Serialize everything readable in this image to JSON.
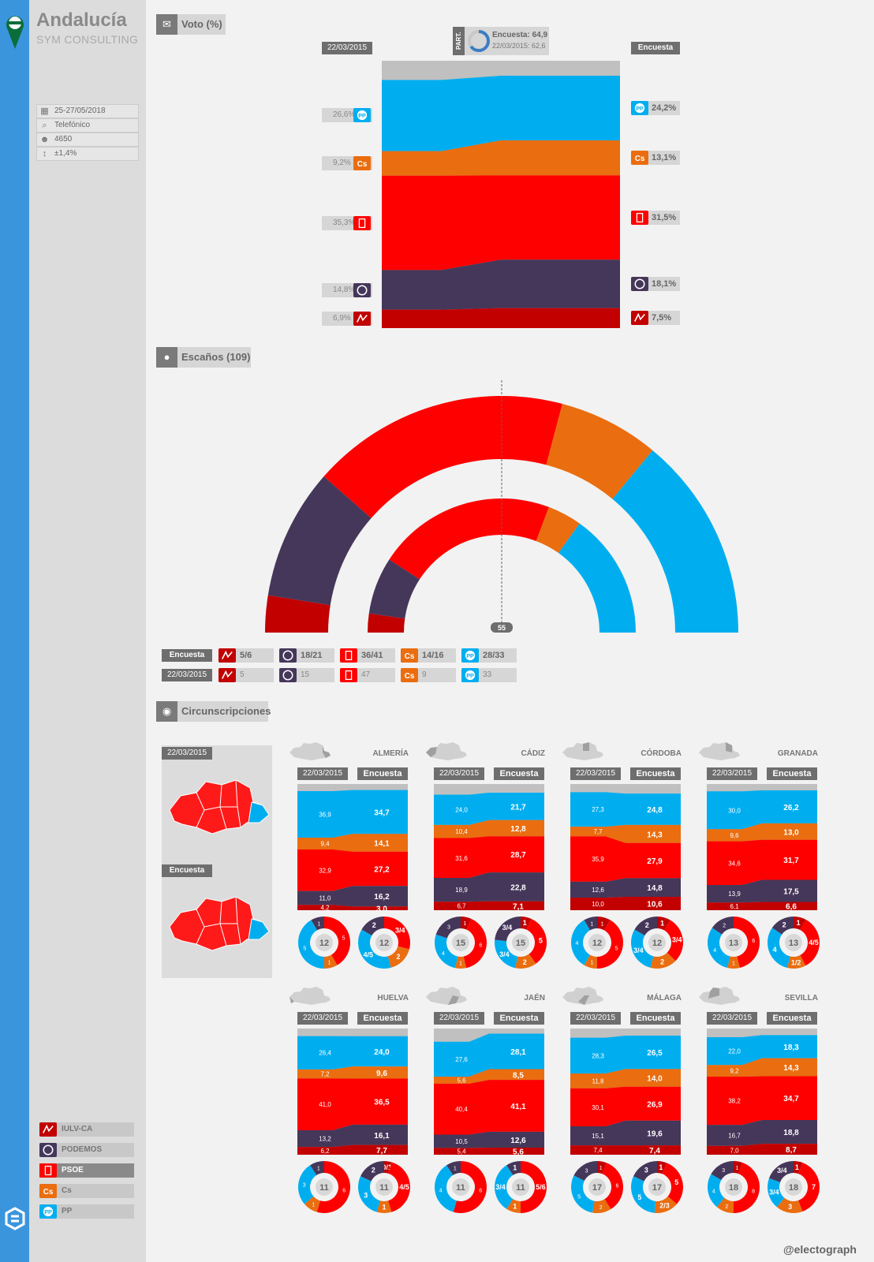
{
  "colors": {
    "IULV-CA": "#c20000",
    "PODEMOS": "#45375a",
    "PSOE": "#ff0000",
    "Cs": "#ea6d0f",
    "PP": "#00aef0",
    "part": "#c0c0c0"
  },
  "header": {
    "title": "Andalucía",
    "pollster": "SYM CONSULTING"
  },
  "meta": [
    {
      "icon": "calendar-icon",
      "value": "25-27/05/2018"
    },
    {
      "icon": "search-icon",
      "value": "Telefónico"
    },
    {
      "icon": "people-icon",
      "value": "4650"
    },
    {
      "icon": "error-margin-icon",
      "value": "±1,4%"
    }
  ],
  "sections": {
    "vote": "Voto (%)",
    "seats": "Escaños (109)",
    "districts": "Circunscripciones"
  },
  "labels": {
    "prev": "22/03/2015",
    "curr": "Encuesta",
    "part_tag": "PART.",
    "part_curr": "Encuesta: 64,9",
    "part_prev": "22/03/2015: 62,6",
    "majority": "55",
    "credit": "@electograph"
  },
  "chart_data": [
    {
      "type": "area",
      "title": "Voto (%)",
      "x": [
        "22/03/2015",
        "Encuesta"
      ],
      "series": [
        {
          "name": "PP",
          "values": [
            26.6,
            24.2
          ],
          "labels": [
            "26,6%",
            "24,2%"
          ]
        },
        {
          "name": "Cs",
          "values": [
            9.2,
            13.1
          ],
          "labels": [
            "9,2%",
            "13,1%"
          ]
        },
        {
          "name": "PSOE",
          "values": [
            35.3,
            31.5
          ],
          "labels": [
            "35,3%",
            "31,5%"
          ]
        },
        {
          "name": "PODEMOS",
          "values": [
            14.8,
            18.1
          ],
          "labels": [
            "14,8%",
            "18,1%"
          ]
        },
        {
          "name": "IULV-CA",
          "values": [
            6.9,
            7.5
          ],
          "labels": [
            "6,9%",
            "7,5%"
          ]
        }
      ],
      "participation": [
        62.6,
        64.9
      ]
    },
    {
      "type": "pie",
      "title": "Escaños (109)",
      "majority": 55,
      "series": [
        {
          "name": "IULV-CA",
          "curr": "5/6",
          "prev": "5",
          "curr_mid": 5.5,
          "prev_val": 5
        },
        {
          "name": "PODEMOS",
          "curr": "18/21",
          "prev": "15",
          "curr_mid": 19.5,
          "prev_val": 15
        },
        {
          "name": "PSOE",
          "curr": "36/41",
          "prev": "47",
          "curr_mid": 38.5,
          "prev_val": 47
        },
        {
          "name": "Cs",
          "curr": "14/16",
          "prev": "9",
          "curr_mid": 15,
          "prev_val": 9
        },
        {
          "name": "PP",
          "curr": "28/33",
          "prev": "33",
          "curr_mid": 30.5,
          "prev_val": 33
        }
      ]
    }
  ],
  "maps": {
    "prev": "22/03/2015",
    "curr": "Encuesta"
  },
  "districts": [
    {
      "name": "ALMERÍA",
      "seats": "12",
      "prev": [
        [
          "36,9",
          "34,7"
        ],
        [
          "9,4",
          "14,1"
        ],
        [
          "32,9",
          "27,2"
        ],
        [
          "11,0",
          "16,2"
        ],
        [
          "4,2",
          "3,0"
        ]
      ],
      "pv": [
        36.9,
        9.4,
        32.9,
        11.0,
        4.2
      ],
      "cv": [
        34.7,
        14.1,
        27.2,
        16.2,
        3.0
      ],
      "ps": [
        "5",
        "1",
        "5",
        "1",
        "0"
      ],
      "psv": [
        5,
        1,
        5,
        1,
        0
      ],
      "cs": [
        "4/5",
        "2",
        "3/4",
        "2",
        "0"
      ],
      "csv": [
        4.5,
        2,
        3.5,
        2,
        0
      ]
    },
    {
      "name": "CÁDIZ",
      "seats": "15",
      "prev": [
        [
          "24,0",
          "21,7"
        ],
        [
          "10,4",
          "12,8"
        ],
        [
          "31,6",
          "28,7"
        ],
        [
          "18,9",
          "22,8"
        ],
        [
          "6,7",
          "7,1"
        ]
      ],
      "pv": [
        24.0,
        10.4,
        31.6,
        18.9,
        6.7
      ],
      "cv": [
        21.7,
        12.8,
        28.7,
        22.8,
        7.1
      ],
      "ps": [
        "4",
        "1",
        "6",
        "3",
        "1"
      ],
      "psv": [
        4,
        1,
        6,
        3,
        1
      ],
      "cs": [
        "3/4",
        "2",
        "5",
        "3/4",
        "1"
      ],
      "csv": [
        3.5,
        2,
        5,
        3.5,
        1
      ]
    },
    {
      "name": "CÓRDOBA",
      "seats": "12",
      "prev": [
        [
          "27,3",
          "24,8"
        ],
        [
          "7,7",
          "14,3"
        ],
        [
          "35,9",
          "27,9"
        ],
        [
          "12,6",
          "14,8"
        ],
        [
          "10,0",
          "10,6"
        ]
      ],
      "pv": [
        27.3,
        7.7,
        35.9,
        12.6,
        10.0
      ],
      "cv": [
        24.8,
        14.3,
        27.9,
        14.8,
        10.6
      ],
      "ps": [
        "4",
        "1",
        "5",
        "1",
        "1"
      ],
      "psv": [
        4,
        1,
        5,
        1,
        1
      ],
      "cs": [
        "3/4",
        "2",
        "3/4",
        "2",
        "1"
      ],
      "csv": [
        3.5,
        2,
        3.5,
        2,
        1
      ]
    },
    {
      "name": "GRANADA",
      "seats": "13",
      "prev": [
        [
          "30,0",
          "26,2"
        ],
        [
          "9,6",
          "13,0"
        ],
        [
          "34,6",
          "31,7"
        ],
        [
          "13,9",
          "17,5"
        ],
        [
          "6,1",
          "6,6"
        ]
      ],
      "pv": [
        30.0,
        9.6,
        34.6,
        13.9,
        6.1
      ],
      "cv": [
        26.2,
        13.0,
        31.7,
        17.5,
        6.6
      ],
      "ps": [
        "4",
        "1",
        "6",
        "2",
        "0"
      ],
      "psv": [
        4,
        1,
        6,
        2,
        0
      ],
      "cs": [
        "4",
        "1/2",
        "4/5",
        "2",
        "1"
      ],
      "csv": [
        4,
        1.5,
        4.5,
        2,
        1
      ]
    },
    {
      "name": "HUELVA",
      "seats": "11",
      "prev": [
        [
          "26,4",
          "24,0"
        ],
        [
          "7,2",
          "9,6"
        ],
        [
          "41,0",
          "36,5"
        ],
        [
          "13,2",
          "16,1"
        ],
        [
          "6,2",
          "7,7"
        ]
      ],
      "pv": [
        26.4,
        7.2,
        41.0,
        13.2,
        6.2
      ],
      "cv": [
        24.0,
        9.6,
        36.5,
        16.1,
        7.7
      ],
      "ps": [
        "3",
        "1",
        "6",
        "1",
        "0"
      ],
      "psv": [
        3,
        1,
        6,
        1,
        0
      ],
      "cs": [
        "3",
        "1",
        "4/5",
        "2",
        "0/1"
      ],
      "csv": [
        3,
        1,
        4.5,
        2,
        0.5
      ]
    },
    {
      "name": "JAÉN",
      "seats": "11",
      "prev": [
        [
          "27,6",
          "28,1"
        ],
        [
          "5,6",
          "8,5"
        ],
        [
          "40,4",
          "41,1"
        ],
        [
          "10,5",
          "12,6"
        ],
        [
          "5,4",
          "5,6"
        ]
      ],
      "pv": [
        27.6,
        5.6,
        40.4,
        10.5,
        5.4
      ],
      "cv": [
        28.1,
        8.5,
        41.1,
        12.6,
        5.6
      ],
      "ps": [
        "4",
        "0",
        "6",
        "1",
        "0"
      ],
      "psv": [
        4,
        0,
        6,
        1,
        0
      ],
      "cs": [
        "3/4",
        "1",
        "5/6",
        "1",
        "0"
      ],
      "csv": [
        3.5,
        1,
        5.5,
        1,
        0
      ]
    },
    {
      "name": "MÁLAGA",
      "seats": "17",
      "prev": [
        [
          "28,3",
          "26,5"
        ],
        [
          "11,8",
          "14,0"
        ],
        [
          "30,1",
          "26,9"
        ],
        [
          "15,1",
          "19,6"
        ],
        [
          "7,4",
          "7,4"
        ]
      ],
      "pv": [
        28.3,
        11.8,
        30.1,
        15.1,
        7.4
      ],
      "cv": [
        26.5,
        14.0,
        26.9,
        19.6,
        7.4
      ],
      "ps": [
        "5",
        "2",
        "6",
        "3",
        "1"
      ],
      "psv": [
        5,
        2,
        6,
        3,
        1
      ],
      "cs": [
        "5",
        "2/3",
        "5",
        "3",
        "1"
      ],
      "csv": [
        5,
        2.5,
        5,
        3,
        1
      ]
    },
    {
      "name": "SEVILLA",
      "seats": "18",
      "prev": [
        [
          "22,0",
          "18,3"
        ],
        [
          "9,2",
          "14,3"
        ],
        [
          "38,2",
          "34,7"
        ],
        [
          "16,7",
          "18,8"
        ],
        [
          "7,0",
          "8,7"
        ]
      ],
      "pv": [
        22.0,
        9.2,
        38.2,
        16.7,
        7.0
      ],
      "cv": [
        18.3,
        14.3,
        34.7,
        18.8,
        8.7
      ],
      "ps": [
        "4",
        "2",
        "8",
        "3",
        "1"
      ],
      "psv": [
        4,
        2,
        8,
        3,
        1
      ],
      "cs": [
        "3/4",
        "3",
        "7",
        "3/4",
        "1"
      ],
      "csv": [
        3.5,
        3,
        7,
        3.5,
        1
      ]
    }
  ],
  "legend": [
    {
      "name": "IULV-CA",
      "label": "IULV-CA"
    },
    {
      "name": "PODEMOS",
      "label": "PODEMOS"
    },
    {
      "name": "PSOE",
      "label": "PSOE"
    },
    {
      "name": "Cs",
      "label": "Cs"
    },
    {
      "name": "PP",
      "label": "PP"
    }
  ]
}
